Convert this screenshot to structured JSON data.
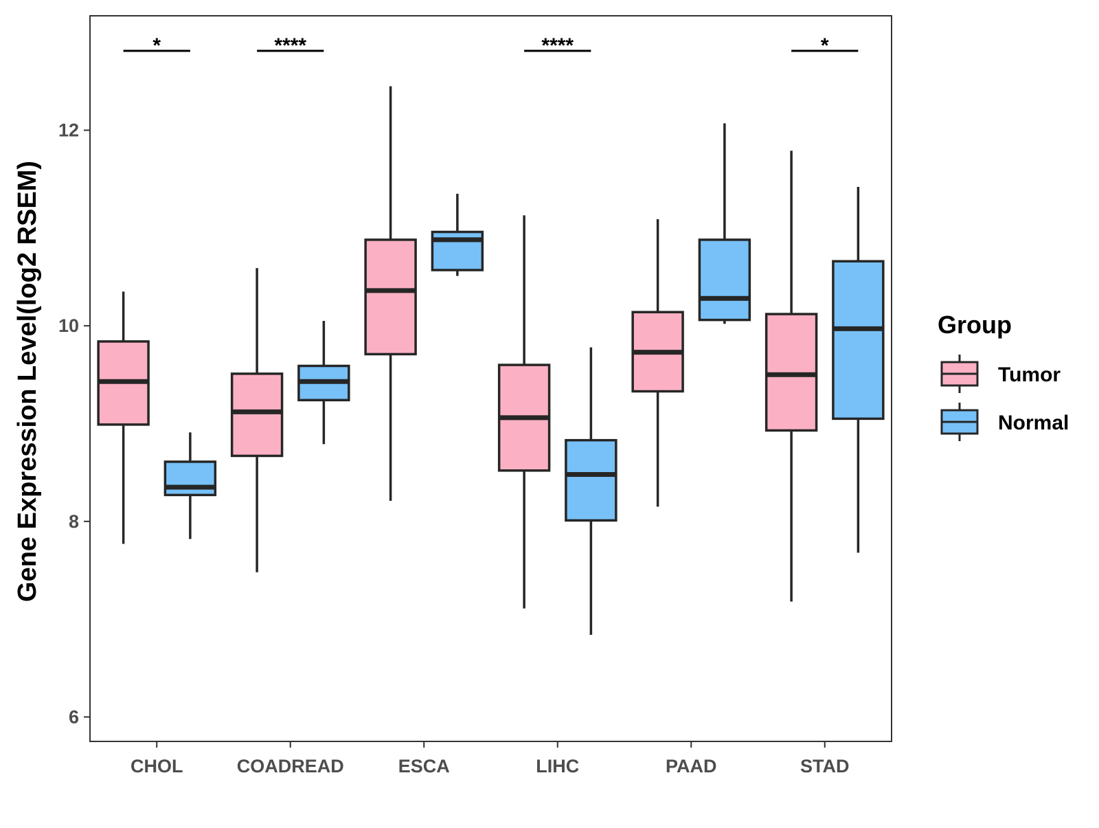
{
  "chart_data": {
    "type": "boxplot",
    "title": "",
    "xlabel": "",
    "ylabel": "Gene Expression Level(log2 RSEM)",
    "ylim": [
      5.75,
      13.17
    ],
    "yticks": [
      6,
      8,
      10,
      12
    ],
    "ytick_labels": [
      "6",
      "8",
      "10",
      "12"
    ],
    "grid": false,
    "legend": {
      "title": "Group",
      "position": "right",
      "entries": [
        "Tumor",
        "Normal"
      ]
    },
    "colors": {
      "Tumor": "#fbb1c3",
      "Normal": "#77c1f8",
      "outline": "#262626"
    },
    "categories": [
      "CHOL",
      "COADREAD",
      "ESCA",
      "LIHC",
      "PAAD",
      "STAD"
    ],
    "series": [
      {
        "name": "Tumor",
        "boxes": [
          {
            "min": 7.77,
            "q1": 8.99,
            "median": 9.43,
            "q3": 9.84,
            "max": 10.35
          },
          {
            "min": 7.48,
            "q1": 8.67,
            "median": 9.12,
            "q3": 9.51,
            "max": 10.59
          },
          {
            "min": 8.21,
            "q1": 9.71,
            "median": 10.36,
            "q3": 10.88,
            "max": 12.45
          },
          {
            "min": 7.11,
            "q1": 8.52,
            "median": 9.06,
            "q3": 9.6,
            "max": 11.13
          },
          {
            "min": 8.15,
            "q1": 9.33,
            "median": 9.73,
            "q3": 10.14,
            "max": 11.09
          },
          {
            "min": 7.18,
            "q1": 8.93,
            "median": 9.5,
            "q3": 10.12,
            "max": 11.79
          }
        ]
      },
      {
        "name": "Normal",
        "boxes": [
          {
            "min": 7.82,
            "q1": 8.27,
            "median": 8.35,
            "q3": 8.61,
            "max": 8.91
          },
          {
            "min": 8.79,
            "q1": 9.24,
            "median": 9.43,
            "q3": 9.59,
            "max": 10.05
          },
          {
            "min": 10.51,
            "q1": 10.57,
            "median": 10.88,
            "q3": 10.96,
            "max": 11.35
          },
          {
            "min": 6.84,
            "q1": 8.01,
            "median": 8.48,
            "q3": 8.83,
            "max": 9.78
          },
          {
            "min": 10.02,
            "q1": 10.06,
            "median": 10.28,
            "q3": 10.88,
            "max": 12.07
          },
          {
            "min": 7.68,
            "q1": 9.05,
            "median": 9.97,
            "q3": 10.66,
            "max": 11.42
          }
        ]
      }
    ],
    "significance": [
      {
        "category": "CHOL",
        "label": "*"
      },
      {
        "category": "COADREAD",
        "label": "****"
      },
      {
        "category": "LIHC",
        "label": "****"
      },
      {
        "category": "STAD",
        "label": "*"
      }
    ]
  }
}
